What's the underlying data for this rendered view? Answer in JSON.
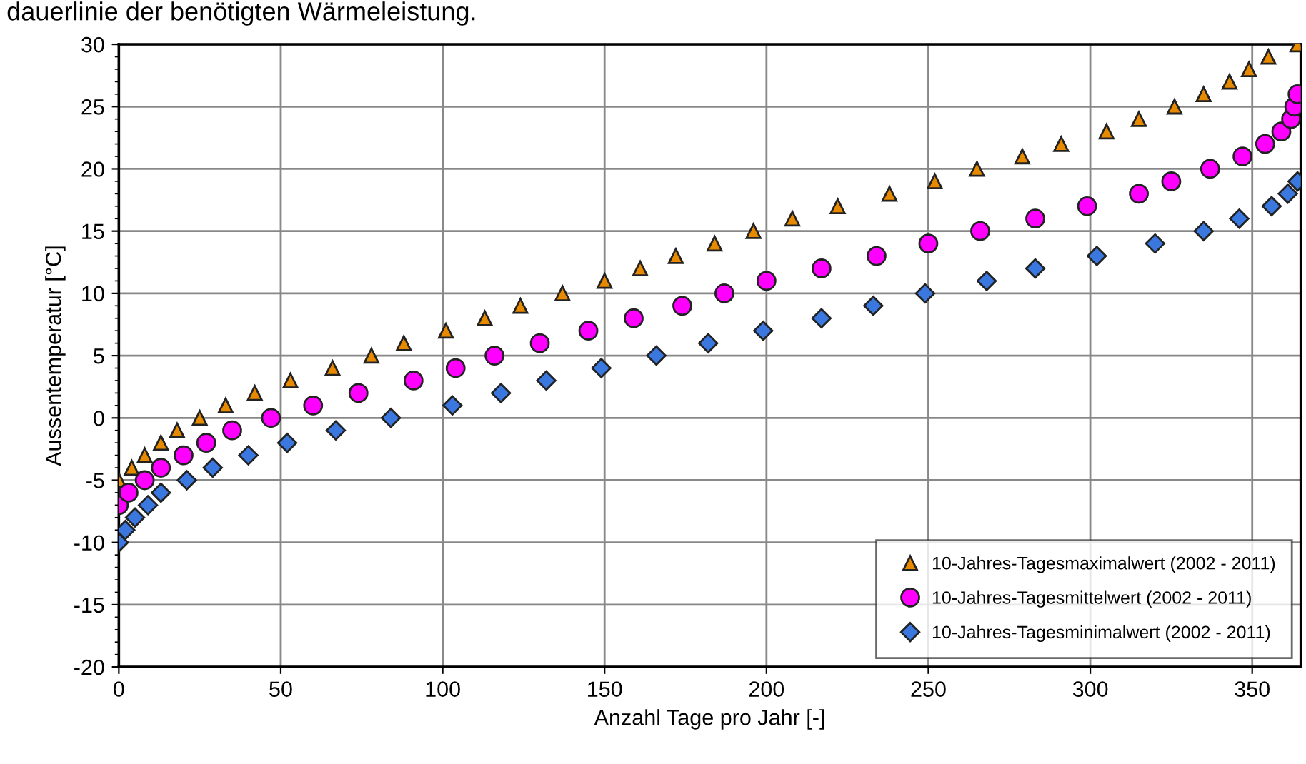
{
  "chart_data": {
    "type": "scatter",
    "title": "dauerlinie der benötigten Wärmeleistung.",
    "xlabel": "Anzahl Tage pro Jahr [-]",
    "ylabel": "Aussentemperatur [°C]",
    "xlim": [
      0,
      365
    ],
    "ylim": [
      -20,
      30
    ],
    "xticks": [
      0,
      50,
      100,
      150,
      200,
      250,
      300,
      350
    ],
    "yticks": [
      -20,
      -15,
      -10,
      -5,
      0,
      5,
      10,
      15,
      20,
      25,
      30
    ],
    "grid": true,
    "legend": "bottom right",
    "series": [
      {
        "name": "10-Jahres-Tagesmaximalwert (2002 - 2011)",
        "color": "#e88a00",
        "marker": "triangle",
        "x": [
          0,
          4,
          8,
          13,
          18,
          25,
          33,
          42,
          53,
          66,
          78,
          88,
          101,
          113,
          124,
          137,
          150,
          161,
          172,
          184,
          196,
          208,
          222,
          238,
          252,
          265,
          279,
          291,
          305,
          315,
          326,
          335,
          343,
          349,
          355,
          364
        ],
        "values": [
          -5,
          -4,
          -3,
          -2,
          -1,
          0,
          1,
          2,
          3,
          4,
          5,
          6,
          7,
          8,
          9,
          10,
          11,
          12,
          13,
          14,
          15,
          16,
          17,
          18,
          19,
          20,
          21,
          22,
          23,
          24,
          25,
          26,
          27,
          28,
          29,
          30
        ]
      },
      {
        "name": "10-Jahres-Tagesmittelwert (2002 - 2011)",
        "color": "#ff00ff",
        "marker": "circle",
        "x": [
          0,
          3,
          8,
          13,
          20,
          27,
          35,
          47,
          60,
          74,
          91,
          104,
          116,
          130,
          145,
          159,
          174,
          187,
          200,
          217,
          234,
          250,
          266,
          283,
          299,
          315,
          325,
          337,
          347,
          354,
          359,
          362,
          363,
          364
        ],
        "values": [
          -7,
          -6,
          -5,
          -4,
          -3,
          -2,
          -1,
          0,
          1,
          2,
          3,
          4,
          5,
          6,
          7,
          8,
          9,
          10,
          11,
          12,
          13,
          14,
          15,
          16,
          17,
          18,
          19,
          20,
          21,
          22,
          23,
          24,
          25,
          26
        ]
      },
      {
        "name": "10-Jahres-Tagesminimalwert (2002 - 2011)",
        "color": "#3a78e0",
        "marker": "diamond",
        "x": [
          0,
          2,
          5,
          9,
          13,
          21,
          29,
          40,
          52,
          67,
          84,
          103,
          118,
          132,
          149,
          166,
          182,
          199,
          217,
          233,
          249,
          268,
          283,
          302,
          320,
          335,
          346,
          356,
          361,
          364
        ],
        "values": [
          -10,
          -9,
          -8,
          -7,
          -6,
          -5,
          -4,
          -3,
          -2,
          -1,
          0,
          1,
          2,
          3,
          4,
          5,
          6,
          7,
          8,
          9,
          10,
          11,
          12,
          13,
          14,
          15,
          16,
          17,
          18,
          19
        ]
      }
    ]
  }
}
